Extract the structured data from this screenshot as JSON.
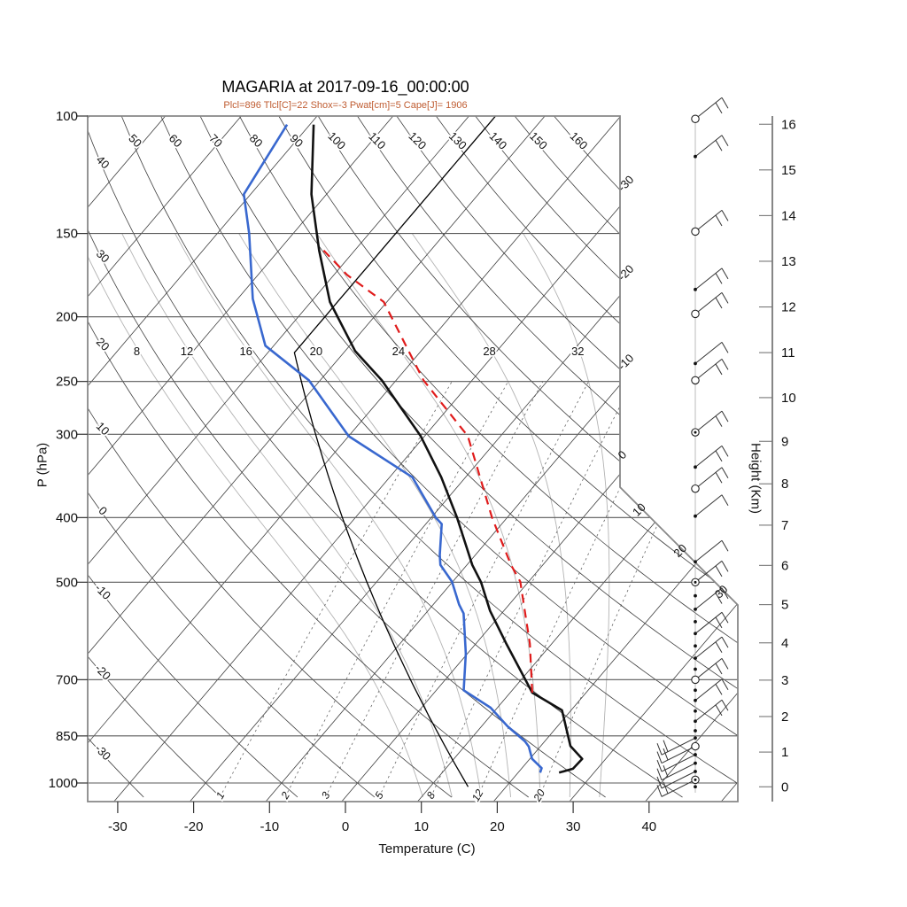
{
  "title": "MAGARIA at 2017-09-16_00:00:00",
  "subtitle": "Plcl=896 Tlcl[C]=22 Shox=-3 Pwat[cm]=5 Cape[J]= 1906",
  "axes": {
    "pressure": {
      "label": "P (hPa)",
      "ticks": [
        100,
        150,
        200,
        250,
        300,
        400,
        500,
        700,
        850,
        1000
      ]
    },
    "temperature": {
      "label": "Temperature (C)",
      "ticks": [
        -30,
        -20,
        -10,
        0,
        10,
        20,
        30,
        40
      ]
    },
    "height": {
      "label": "Height (Km)",
      "ticks": [
        0,
        1,
        2,
        3,
        4,
        5,
        6,
        7,
        8,
        9,
        10,
        11,
        12,
        13,
        14,
        15,
        16
      ]
    }
  },
  "colors": {
    "temperature": "#111111",
    "dewpoint": "#3968cf",
    "parcel": "#e01b1b",
    "standard_atmosphere": "#000000",
    "subtitle": "#bf5b30",
    "grid": "#3f3f3f",
    "moist": "#b3b3b3",
    "pressure_lines": "#5a5a5a",
    "spine": "#888888"
  },
  "chart_data": {
    "type": "skewt-logp",
    "station": "MAGARIA",
    "datetime": "2017-09-16_00:00:00",
    "indices": {
      "Plcl": 896,
      "Tlcl_C": 22,
      "Shox": -3,
      "Pwat_cm": 5,
      "Cape_J": 1906
    },
    "pressure_range_hPa": [
      100,
      1050
    ],
    "temperature_range_C": [
      -30,
      40
    ],
    "grid": {
      "isotherms": {
        "min": -120,
        "max": 50,
        "step": 10
      },
      "dry_adiabats": {
        "min": -30,
        "max": 160,
        "step": 10
      },
      "moist_adiabats": {
        "values": [
          8,
          12,
          16,
          20,
          24,
          28,
          32
        ]
      },
      "mixing_ratio": {
        "values": [
          1,
          2,
          3,
          5,
          8,
          12,
          20
        ]
      },
      "isotherm_labels_right_edge": [
        -30,
        -20,
        -10,
        0
      ],
      "isotherm_labels_diagonal": [
        10,
        20,
        30
      ]
    },
    "temperature_profile": [
      [
        965,
        25.4
      ],
      [
        952,
        26.8
      ],
      [
        920,
        26.9
      ],
      [
        880,
        23.9
      ],
      [
        778,
        18.8
      ],
      [
        732,
        12.9
      ],
      [
        617,
        3.9
      ],
      [
        552,
        -1.8
      ],
      [
        500,
        -6.2
      ],
      [
        471,
        -9.3
      ],
      [
        400,
        -16.6
      ],
      [
        348,
        -23.2
      ],
      [
        302,
        -30.5
      ],
      [
        249,
        -41.9
      ],
      [
        225,
        -48.7
      ],
      [
        190,
        -57.5
      ],
      [
        159,
        -64.7
      ],
      [
        131,
        -72.0
      ],
      [
        103,
        -79.5
      ]
    ],
    "dewpoint_profile": [
      [
        965,
        22.9
      ],
      [
        950,
        22.6
      ],
      [
        920,
        20.3
      ],
      [
        882,
        18.5
      ],
      [
        866,
        17.4
      ],
      [
        822,
        13.4
      ],
      [
        771,
        9.1
      ],
      [
        726,
        3.6
      ],
      [
        640,
        -0.2
      ],
      [
        557,
        -5.0
      ],
      [
        540,
        -6.6
      ],
      [
        499,
        -10.1
      ],
      [
        471,
        -13.5
      ],
      [
        455,
        -14.7
      ],
      [
        409,
        -17.9
      ],
      [
        400,
        -19.4
      ],
      [
        348,
        -27.0
      ],
      [
        302,
        -40.0
      ],
      [
        249,
        -51.5
      ],
      [
        221,
        -61.1
      ],
      [
        188,
        -68.0
      ],
      [
        150,
        -75.8
      ],
      [
        131,
        -80.9
      ],
      [
        103,
        -83.0
      ]
    ],
    "parcel_profile": [
      [
        732,
        12.9
      ],
      [
        618,
        7.1
      ],
      [
        499,
        -1.1
      ],
      [
        471,
        -4.2
      ],
      [
        400,
        -12.0
      ],
      [
        302,
        -24.3
      ],
      [
        249,
        -36.4
      ],
      [
        190,
        -50.4
      ],
      [
        173,
        -58.3
      ],
      [
        159,
        -64.1
      ]
    ],
    "standard_atmosphere_line": true,
    "wind_barbs": {
      "levels": [
        {
          "p": 101,
          "sym": "circle",
          "ticks": 2,
          "dir": "ne"
        },
        {
          "p": 115,
          "sym": "dot",
          "ticks": 2,
          "dir": "ne"
        },
        {
          "p": 149,
          "sym": "circle",
          "ticks": 2,
          "dir": "ne"
        },
        {
          "p": 182,
          "sym": "dot",
          "ticks": 2,
          "dir": "ne"
        },
        {
          "p": 198,
          "sym": "circle",
          "ticks": 2,
          "dir": "ne"
        },
        {
          "p": 235,
          "sym": "dot",
          "ticks": 1,
          "dir": "ne"
        },
        {
          "p": 249,
          "sym": "circle",
          "ticks": 2,
          "dir": "ne"
        },
        {
          "p": 298,
          "sym": "circled-dot",
          "ticks": 2,
          "dir": "ne"
        },
        {
          "p": 336,
          "sym": "dot",
          "ticks": 2,
          "dir": "ne"
        },
        {
          "p": 362,
          "sym": "circle",
          "ticks": 2,
          "dir": "ne"
        },
        {
          "p": 398,
          "sym": "dot",
          "ticks": 1,
          "dir": "ne"
        },
        {
          "p": 466,
          "sym": "dot",
          "ticks": 1,
          "dir": "ne"
        },
        {
          "p": 500,
          "sym": "circled-dot",
          "ticks": 2,
          "dir": "ne"
        },
        {
          "p": 524,
          "sym": "dot",
          "ticks": 0,
          "dir": "ne"
        },
        {
          "p": 549,
          "sym": "dot",
          "ticks": 2,
          "dir": "ne"
        },
        {
          "p": 573,
          "sym": "dot",
          "ticks": 0,
          "dir": "ne"
        },
        {
          "p": 597,
          "sym": "dot",
          "ticks": 2,
          "dir": "ne"
        },
        {
          "p": 623,
          "sym": "dot",
          "ticks": 0,
          "dir": "ne"
        },
        {
          "p": 650,
          "sym": "dot",
          "ticks": 2,
          "dir": "ne"
        },
        {
          "p": 675,
          "sym": "dot",
          "ticks": 0,
          "dir": "ne"
        },
        {
          "p": 700,
          "sym": "circle",
          "ticks": 2,
          "dir": "ne"
        },
        {
          "p": 726,
          "sym": "dot",
          "ticks": 0,
          "dir": "ne"
        },
        {
          "p": 752,
          "sym": "dot",
          "ticks": 2,
          "dir": "ne"
        },
        {
          "p": 780,
          "sym": "dot",
          "ticks": 0,
          "dir": "ne"
        },
        {
          "p": 808,
          "sym": "dot",
          "ticks": 2,
          "dir": "ne"
        },
        {
          "p": 835,
          "sym": "dot",
          "ticks": 0,
          "dir": "ne"
        },
        {
          "p": 856,
          "sym": "dot",
          "ticks": 2,
          "dir": "sw"
        },
        {
          "p": 881,
          "sym": "circle",
          "ticks": 2,
          "dir": "sw"
        },
        {
          "p": 907,
          "sym": "dot",
          "ticks": 1,
          "dir": "sw"
        },
        {
          "p": 934,
          "sym": "dot",
          "ticks": 2,
          "dir": "sw"
        },
        {
          "p": 961,
          "sym": "dot",
          "ticks": 1,
          "dir": "sw"
        },
        {
          "p": 989,
          "sym": "circled-dot",
          "ticks": 2,
          "dir": "sw"
        },
        {
          "p": 1013,
          "sym": "dot",
          "ticks": 0,
          "dir": "ne"
        }
      ]
    }
  }
}
